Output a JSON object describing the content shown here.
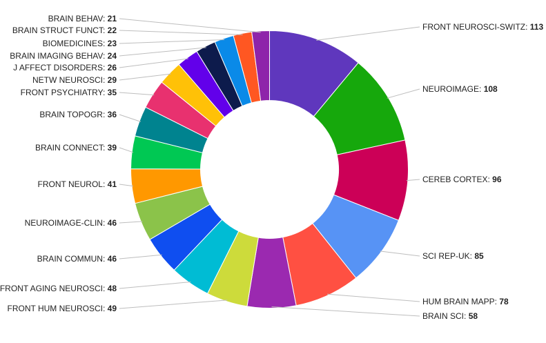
{
  "chart_data": {
    "type": "pie",
    "variant": "donut",
    "series": [
      {
        "name": "FRONT NEUROSCI-SWITZ",
        "value": 113,
        "color": "#5f37bd"
      },
      {
        "name": "NEUROIMAGE",
        "value": 108,
        "color": "#16a80c"
      },
      {
        "name": "CEREB CORTEX",
        "value": 96,
        "color": "#cc0057"
      },
      {
        "name": "SCI REP-UK",
        "value": 85,
        "color": "#5793f5"
      },
      {
        "name": "HUM BRAIN MAPP",
        "value": 78,
        "color": "#ff5042"
      },
      {
        "name": "BRAIN SCI",
        "value": 58,
        "color": "#9b29b0"
      },
      {
        "name": "FRONT HUM NEUROSCI",
        "value": 49,
        "color": "#cddb3b"
      },
      {
        "name": "FRONT AGING NEUROSCI",
        "value": 48,
        "color": "#00bcd4"
      },
      {
        "name": "BRAIN COMMUN",
        "value": 46,
        "color": "#0f4ef0"
      },
      {
        "name": "NEUROIMAGE-CLIN",
        "value": 46,
        "color": "#8bc34a"
      },
      {
        "name": "FRONT NEUROL",
        "value": 41,
        "color": "#ff9800"
      },
      {
        "name": "BRAIN CONNECT",
        "value": 39,
        "color": "#00c853"
      },
      {
        "name": "BRAIN TOPOGR",
        "value": 36,
        "color": "#00838f"
      },
      {
        "name": "FRONT PSYCHIATRY",
        "value": 35,
        "color": "#e8316f"
      },
      {
        "name": "NETW NEUROSCI",
        "value": 29,
        "color": "#ffc107"
      },
      {
        "name": "J AFFECT DISORDERS",
        "value": 26,
        "color": "#6200ea"
      },
      {
        "name": "BRAIN IMAGING BEHAV",
        "value": 24,
        "color": "#0d1b4c"
      },
      {
        "name": "BIOMEDICINES",
        "value": 23,
        "color": "#0a8ae8"
      },
      {
        "name": "BRAIN STRUCT FUNCT",
        "value": 22,
        "color": "#ff5722"
      },
      {
        "name": "BRAIN BEHAV",
        "value": 21,
        "color": "#8e24aa"
      }
    ]
  }
}
